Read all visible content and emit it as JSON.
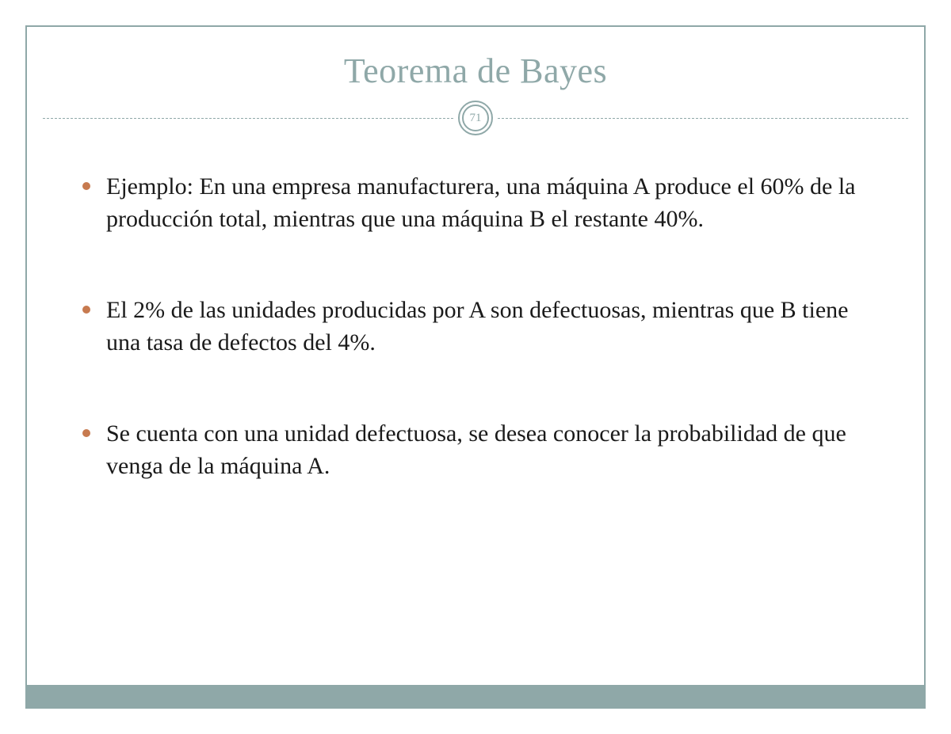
{
  "slide": {
    "title": "Teorema de Bayes",
    "page_number": "71",
    "bullets": [
      "Ejemplo: En una empresa manufacturera, una máquina A produce el 60% de la producción total, mientras que una máquina B el restante 40%.",
      "El 2% de las unidades producidas por A son defectuosas, mientras que B tiene una tasa de defectos del 4%.",
      " Se cuenta con una unidad defectuosa, se desea conocer la probabilidad de que venga de la máquina A."
    ]
  },
  "colors": {
    "accent": "#8fa8a8",
    "bullet": "#c77a4f",
    "text": "#1a1a1a",
    "background": "#ffffff"
  },
  "typography": {
    "title_fontsize": 44,
    "body_fontsize": 30,
    "pagenum_fontsize": 15,
    "font_family": "Georgia, serif"
  },
  "layout": {
    "slide_width": 1200,
    "slide_height": 927,
    "outer_padding": 32,
    "border_width": 2,
    "bottom_bar_height": 28,
    "bullet_diameter": 10,
    "page_circle_outer_diameter": 44,
    "page_circle_inner_diameter": 34
  }
}
